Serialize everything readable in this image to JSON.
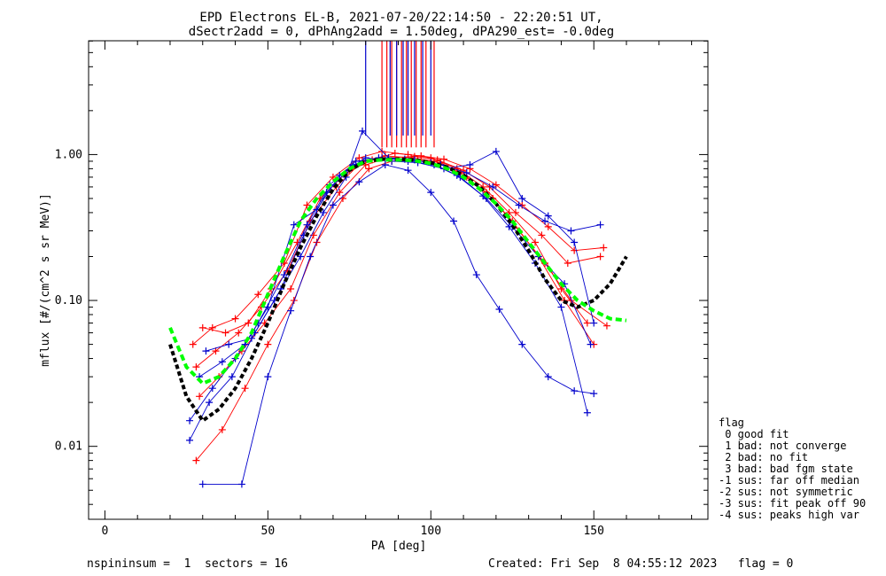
{
  "title_line1": "EPD Electrons EL-B, 2021-07-20/22:14:50 - 22:20:51 UT,",
  "title_line2": "dSectr2add = 0, dPhAng2add = 1.50deg, dPA290_est=  -0.0deg",
  "footer": {
    "left": "nspininsum =  1  sectors = 16",
    "right": "Created: Fri Sep  8 04:55:12 2023   flag = 0"
  },
  "flag_legend": {
    "title": "flag",
    "entries": [
      " 0 good fit",
      " 1 bad: not converge",
      " 2 bad: no fit",
      " 3 bad: bad fgm state",
      "-1 sus: far off median",
      "-2 sus: not symmetric",
      "-3 sus: fit peak off 90",
      "-4 sus: peaks high var"
    ]
  },
  "colors": {
    "red": "#ff0000",
    "blue": "#0000cc",
    "green": "#00ff00",
    "black": "#000000"
  },
  "chart_data": {
    "type": "line",
    "xlabel": "PA [deg]",
    "ylabel": "mflux [#/(cm^2 s sr MeV)]",
    "xlim": [
      -5,
      185
    ],
    "ylim_log10": [
      -2.5,
      0.78
    ],
    "y_scale": "log",
    "x_ticks": [
      0,
      50,
      100,
      150
    ],
    "x_tick_labels": [
      "0",
      "50",
      "100",
      "150"
    ],
    "y_ticks": [
      0.01,
      0.1,
      1.0
    ],
    "y_tick_labels": [
      "0.01",
      "0.10",
      "1.00"
    ],
    "series": [
      {
        "color": "red",
        "x": [
          27,
          33,
          40,
          47,
          55,
          62,
          70,
          78,
          85,
          93,
          100,
          108,
          116,
          124,
          132,
          140,
          148
        ],
        "y": [
          0.05,
          0.065,
          0.075,
          0.11,
          0.18,
          0.45,
          0.7,
          0.95,
          1.05,
          1.0,
          0.95,
          0.8,
          0.6,
          0.4,
          0.25,
          0.12,
          0.07
        ]
      },
      {
        "color": "red",
        "x": [
          28,
          34,
          41,
          48,
          56,
          63,
          71,
          79,
          86,
          94,
          101,
          109,
          117,
          125,
          133,
          141,
          150
        ],
        "y": [
          0.035,
          0.045,
          0.06,
          0.09,
          0.16,
          0.35,
          0.6,
          0.9,
          0.98,
          0.95,
          0.9,
          0.75,
          0.55,
          0.35,
          0.2,
          0.1,
          0.05
        ]
      },
      {
        "color": "red",
        "x": [
          29,
          35,
          42,
          49,
          57,
          64,
          72,
          80,
          87,
          95,
          102,
          110,
          118,
          126,
          134,
          142,
          152
        ],
        "y": [
          0.022,
          0.03,
          0.045,
          0.07,
          0.12,
          0.28,
          0.55,
          0.85,
          0.95,
          0.97,
          0.92,
          0.78,
          0.6,
          0.4,
          0.28,
          0.18,
          0.2
        ]
      },
      {
        "color": "red",
        "x": [
          28,
          36,
          43,
          50,
          58,
          65,
          73,
          81,
          88,
          96,
          103,
          111,
          119,
          127,
          135,
          143,
          154
        ],
        "y": [
          0.008,
          0.013,
          0.025,
          0.05,
          0.1,
          0.25,
          0.5,
          0.8,
          0.9,
          0.92,
          0.88,
          0.7,
          0.5,
          0.3,
          0.18,
          0.1,
          0.067
        ]
      },
      {
        "color": "red",
        "x": [
          30,
          37,
          44,
          51,
          59,
          66,
          74,
          82,
          89,
          97,
          104,
          112,
          120,
          128,
          136,
          144,
          153
        ],
        "y": [
          0.065,
          0.06,
          0.07,
          0.12,
          0.25,
          0.5,
          0.75,
          0.92,
          1.02,
          0.98,
          0.93,
          0.8,
          0.62,
          0.45,
          0.32,
          0.22,
          0.23
        ]
      },
      {
        "color": "blue",
        "x": [
          30,
          42,
          50,
          57,
          63,
          70,
          78,
          86,
          93,
          100,
          107,
          114,
          121,
          128,
          136,
          144,
          150
        ],
        "y": [
          0.0055,
          0.0055,
          0.03,
          0.085,
          0.2,
          0.45,
          0.65,
          0.85,
          0.78,
          0.55,
          0.35,
          0.15,
          0.087,
          0.05,
          0.03,
          0.024,
          0.023
        ]
      },
      {
        "color": "blue",
        "x": [
          26,
          32,
          39,
          46,
          54,
          61,
          68,
          76,
          84,
          92,
          100,
          108,
          116,
          124,
          132,
          140,
          148
        ],
        "y": [
          0.011,
          0.02,
          0.03,
          0.06,
          0.12,
          0.28,
          0.55,
          0.85,
          0.95,
          0.93,
          0.88,
          0.72,
          0.52,
          0.32,
          0.18,
          0.09,
          0.017
        ]
      },
      {
        "color": "blue",
        "x": [
          26,
          33,
          40,
          47,
          55,
          62,
          69,
          77,
          85,
          93,
          101,
          109,
          117,
          125,
          133,
          141,
          149
        ],
        "y": [
          0.015,
          0.025,
          0.04,
          0.07,
          0.15,
          0.33,
          0.62,
          0.9,
          0.95,
          0.9,
          0.85,
          0.7,
          0.5,
          0.32,
          0.2,
          0.13,
          0.05
        ]
      },
      {
        "color": "blue",
        "x": [
          31,
          38,
          45,
          52,
          60,
          67,
          74,
          79,
          87,
          95,
          103,
          111,
          119,
          127,
          135,
          143,
          152
        ],
        "y": [
          0.045,
          0.05,
          0.055,
          0.1,
          0.2,
          0.4,
          0.7,
          1.45,
          0.95,
          0.92,
          0.85,
          0.75,
          0.6,
          0.45,
          0.35,
          0.3,
          0.33
        ]
      },
      {
        "color": "blue",
        "x": [
          29,
          36,
          43,
          50,
          58,
          65,
          72,
          80,
          88,
          96,
          104,
          112,
          120,
          128,
          136,
          144,
          150
        ],
        "y": [
          0.03,
          0.038,
          0.05,
          0.09,
          0.33,
          0.42,
          0.72,
          0.95,
          0.9,
          0.88,
          0.8,
          0.85,
          1.05,
          0.5,
          0.38,
          0.25,
          0.07
        ]
      }
    ],
    "saturated_bars": {
      "red_x": [
        85,
        86.5,
        88,
        89.5,
        91,
        92.5,
        94,
        95.5,
        97,
        98.5,
        101
      ],
      "blue_x": [
        80,
        87.5,
        89.5,
        91.5,
        93,
        95,
        97.5,
        100
      ],
      "y_low_red": 1.12,
      "y_low_blue": 1.35
    },
    "fit_black": {
      "x": [
        20,
        25,
        30,
        35,
        40,
        45,
        50,
        55,
        60,
        65,
        70,
        75,
        80,
        85,
        90,
        95,
        100,
        105,
        110,
        115,
        120,
        125,
        130,
        135,
        140,
        145,
        150,
        155,
        160
      ],
      "y": [
        0.05,
        0.022,
        0.015,
        0.018,
        0.025,
        0.04,
        0.07,
        0.13,
        0.23,
        0.38,
        0.58,
        0.78,
        0.9,
        0.93,
        0.93,
        0.92,
        0.88,
        0.82,
        0.72,
        0.6,
        0.46,
        0.33,
        0.22,
        0.14,
        0.1,
        0.09,
        0.1,
        0.13,
        0.2
      ]
    },
    "fit_green": {
      "x": [
        20,
        25,
        30,
        35,
        40,
        45,
        50,
        55,
        60,
        65,
        70,
        75,
        80,
        85,
        90,
        95,
        100,
        105,
        110,
        115,
        120,
        125,
        130,
        135,
        140,
        145,
        150,
        155,
        160
      ],
      "y": [
        0.065,
        0.035,
        0.027,
        0.03,
        0.04,
        0.06,
        0.11,
        0.2,
        0.35,
        0.5,
        0.65,
        0.8,
        0.9,
        0.92,
        0.92,
        0.91,
        0.87,
        0.8,
        0.7,
        0.58,
        0.46,
        0.35,
        0.25,
        0.18,
        0.13,
        0.1,
        0.085,
        0.075,
        0.073
      ]
    }
  }
}
